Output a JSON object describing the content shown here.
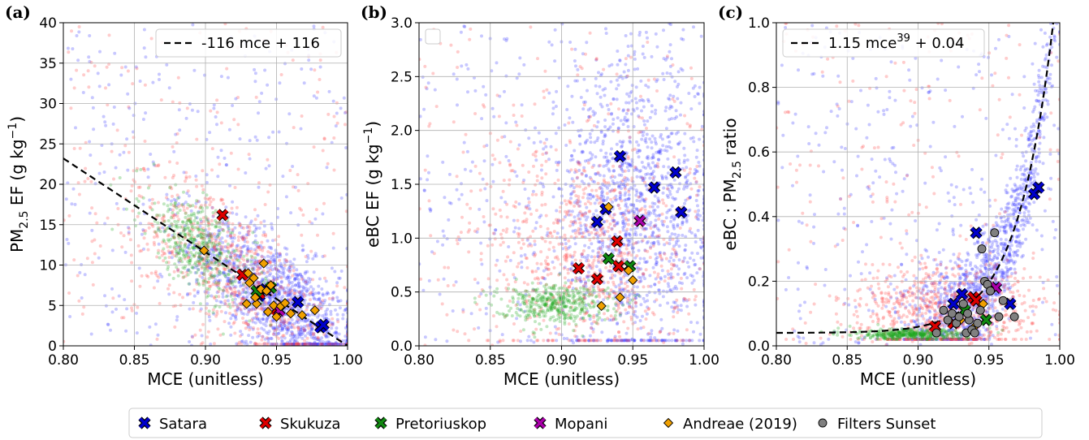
{
  "chart_data": [
    {
      "type": "scatter",
      "panel_label": "(a)",
      "xlabel": "MCE (unitless)",
      "ylabel_main": "PM",
      "ylabel_sub": "2.5",
      "ylabel_rest": " EF (g kg",
      "ylabel_sup": "−1",
      "ylabel_end": ")",
      "xlim": [
        0.8,
        1.0
      ],
      "ylim": [
        0,
        40
      ],
      "xticks": [
        "0.80",
        "0.85",
        "0.90",
        "0.95",
        "1.00"
      ],
      "xtick_values": [
        0.8,
        0.85,
        0.9,
        0.95,
        1.0
      ],
      "yticks": [
        "0",
        "5",
        "10",
        "15",
        "20",
        "25",
        "30",
        "35",
        "40"
      ],
      "ytick_values": [
        0,
        5,
        10,
        15,
        20,
        25,
        30,
        35,
        40
      ],
      "grid": true,
      "fit": {
        "label": "-116 mce + 116",
        "kind": "linear",
        "a": -116,
        "b": 116
      },
      "legend_position": "top-right",
      "series": [
        {
          "name": "Satara",
          "marker": "x",
          "color": "#0000cc",
          "x": [
            0.938,
            0.965,
            0.981,
            0.983,
            0.942
          ],
          "y": [
            6.2,
            5.4,
            2.3,
            2.6,
            7.0
          ]
        },
        {
          "name": "Skukuza",
          "marker": "x",
          "color": "#dd0000",
          "x": [
            0.912,
            0.926,
            0.938,
            0.95
          ],
          "y": [
            16.2,
            8.8,
            6.5,
            4.5
          ]
        },
        {
          "name": "Pretoriuskop",
          "marker": "x",
          "color": "#118811",
          "x": [
            0.946,
            0.936
          ],
          "y": [
            7.2,
            6.8
          ]
        },
        {
          "name": "Mopani",
          "marker": "x",
          "color": "#aa00aa",
          "x": [
            0.952
          ],
          "y": [
            4.4
          ]
        },
        {
          "name": "Andreae (2019)",
          "marker": "diamond",
          "color": "#f0a000",
          "x": [
            0.899,
            0.929,
            0.931,
            0.934,
            0.936,
            0.939,
            0.941,
            0.943,
            0.944,
            0.946,
            0.948,
            0.95,
            0.953,
            0.956,
            0.96,
            0.968,
            0.977,
            0.93,
            0.935
          ],
          "y": [
            11.8,
            5.2,
            7.8,
            8.4,
            5.2,
            7.0,
            10.2,
            6.8,
            4.2,
            7.5,
            5.0,
            3.6,
            4.9,
            5.3,
            4.0,
            3.8,
            4.4,
            9.0,
            6.0
          ]
        }
      ]
    },
    {
      "type": "scatter",
      "panel_label": "(b)",
      "xlabel": "MCE (unitless)",
      "ylabel_main": "eBC EF (g kg",
      "ylabel_sup": "−1",
      "ylabel_end": ")",
      "xlim": [
        0.8,
        1.0
      ],
      "ylim": [
        0,
        3.0
      ],
      "xticks": [
        "0.80",
        "0.85",
        "0.90",
        "0.95",
        "1.00"
      ],
      "xtick_values": [
        0.8,
        0.85,
        0.9,
        0.95,
        1.0
      ],
      "yticks": [
        "0.0",
        "0.5",
        "1.0",
        "1.5",
        "2.0",
        "2.5",
        "3.0"
      ],
      "ytick_values": [
        0,
        0.5,
        1.0,
        1.5,
        2.0,
        2.5,
        3.0
      ],
      "grid": true,
      "legend_position": "top-left",
      "series": [
        {
          "name": "Satara",
          "marker": "x",
          "color": "#0000cc",
          "x": [
            0.925,
            0.931,
            0.941,
            0.965,
            0.98,
            0.984
          ],
          "y": [
            1.15,
            1.27,
            1.76,
            1.47,
            1.61,
            1.24
          ]
        },
        {
          "name": "Skukuza",
          "marker": "x",
          "color": "#dd0000",
          "x": [
            0.912,
            0.925,
            0.939,
            0.94
          ],
          "y": [
            0.72,
            0.62,
            0.97,
            0.74
          ]
        },
        {
          "name": "Pretoriuskop",
          "marker": "x",
          "color": "#118811",
          "x": [
            0.933,
            0.948
          ],
          "y": [
            0.81,
            0.74
          ]
        },
        {
          "name": "Mopani",
          "marker": "x",
          "color": "#aa00aa",
          "x": [
            0.955
          ],
          "y": [
            1.16
          ]
        },
        {
          "name": "Andreae (2019)",
          "marker": "diamond",
          "color": "#f0a000",
          "x": [
            0.933,
            0.928,
            0.941,
            0.947,
            0.95
          ],
          "y": [
            1.29,
            0.37,
            0.45,
            0.7,
            0.61
          ]
        }
      ]
    },
    {
      "type": "scatter",
      "panel_label": "(c)",
      "xlabel": "MCE (unitless)",
      "ylabel_main": "eBC : PM",
      "ylabel_sub": "2.5",
      "ylabel_rest": " ratio",
      "xlim": [
        0.8,
        1.0
      ],
      "ylim": [
        0,
        1.0
      ],
      "xticks": [
        "0.80",
        "0.85",
        "0.90",
        "0.95",
        "1.00"
      ],
      "xtick_values": [
        0.8,
        0.85,
        0.9,
        0.95,
        1.0
      ],
      "yticks": [
        "0.0",
        "0.2",
        "0.4",
        "0.6",
        "0.8",
        "1.0"
      ],
      "ytick_values": [
        0,
        0.2,
        0.4,
        0.6,
        0.8,
        1.0
      ],
      "grid": true,
      "fit": {
        "label_main": "1.15 mce",
        "label_sup": "39",
        "label_end": " + 0.04",
        "kind": "power",
        "a": 1.15,
        "n": 39,
        "b": 0.04
      },
      "legend_position": "top-left",
      "series": [
        {
          "name": "Satara",
          "marker": "x",
          "color": "#0000cc",
          "x": [
            0.925,
            0.931,
            0.941,
            0.965,
            0.982,
            0.985
          ],
          "y": [
            0.13,
            0.16,
            0.35,
            0.13,
            0.47,
            0.49
          ]
        },
        {
          "name": "Skukuza",
          "marker": "x",
          "color": "#dd0000",
          "x": [
            0.912,
            0.925,
            0.939,
            0.941
          ],
          "y": [
            0.06,
            0.07,
            0.15,
            0.14
          ]
        },
        {
          "name": "Pretoriuskop",
          "marker": "x",
          "color": "#118811",
          "x": [
            0.933,
            0.948
          ],
          "y": [
            0.11,
            0.08
          ]
        },
        {
          "name": "Mopani",
          "marker": "x",
          "color": "#aa00aa",
          "x": [
            0.955
          ],
          "y": [
            0.18
          ]
        },
        {
          "name": "Andreae (2019)",
          "marker": "diamond",
          "color": "#f0a000",
          "x": [
            0.93,
            0.94,
            0.946
          ],
          "y": [
            0.08,
            0.06,
            0.13
          ]
        },
        {
          "name": "Filters Sunset",
          "marker": "circle",
          "color": "#808080",
          "x": [
            0.913,
            0.918,
            0.921,
            0.924,
            0.927,
            0.929,
            0.932,
            0.934,
            0.936,
            0.938,
            0.94,
            0.942,
            0.945,
            0.947,
            0.949,
            0.951,
            0.954,
            0.957,
            0.96,
            0.968,
            0.944,
            0.935
          ],
          "y": [
            0.04,
            0.11,
            0.08,
            0.1,
            0.07,
            0.09,
            0.13,
            0.04,
            0.08,
            0.05,
            0.04,
            0.07,
            0.3,
            0.2,
            0.19,
            0.17,
            0.35,
            0.09,
            0.14,
            0.09,
            0.11,
            0.1
          ]
        }
      ]
    }
  ],
  "legend": {
    "position": "bottom-center",
    "entries": [
      {
        "label": "Satara",
        "marker": "x",
        "color": "#0000cc"
      },
      {
        "label": "Skukuza",
        "marker": "x",
        "color": "#dd0000"
      },
      {
        "label": "Pretoriuskop",
        "marker": "x",
        "color": "#118811"
      },
      {
        "label": "Mopani",
        "marker": "x",
        "color": "#aa00aa"
      },
      {
        "label": "Andreae (2019)",
        "marker": "diamond",
        "color": "#f0a000"
      },
      {
        "label": "Filters Sunset",
        "marker": "circle",
        "color": "#808080"
      }
    ]
  }
}
